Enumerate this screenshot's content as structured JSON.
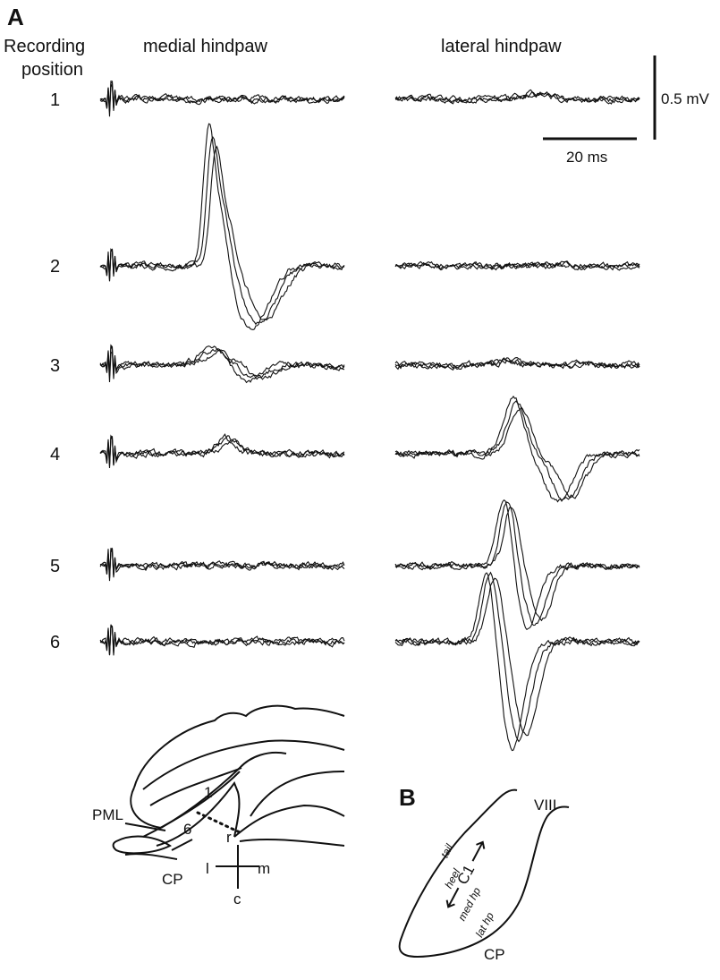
{
  "panel_a": {
    "label": "A",
    "row_header": [
      "Recording",
      "position"
    ],
    "columns": [
      "medial hindpaw",
      "lateral hindpaw"
    ],
    "rows": [
      "1",
      "2",
      "3",
      "4",
      "5",
      "6"
    ],
    "scale_bar": {
      "voltage": "0.5 mV",
      "time": "20 ms"
    },
    "diagram": {
      "pml": "PML",
      "cp": "CP",
      "pos_first": "1",
      "pos_last": "6",
      "rostral": "r",
      "lateral": "l",
      "medial": "m",
      "caudal": "c"
    }
  },
  "panel_b": {
    "label": "B",
    "lobule": "VIII",
    "zone": "C1",
    "tail": "tail",
    "heel": "heel",
    "med_hp": "med hp",
    "lat_hp": "lat hp",
    "cp": "CP"
  }
}
